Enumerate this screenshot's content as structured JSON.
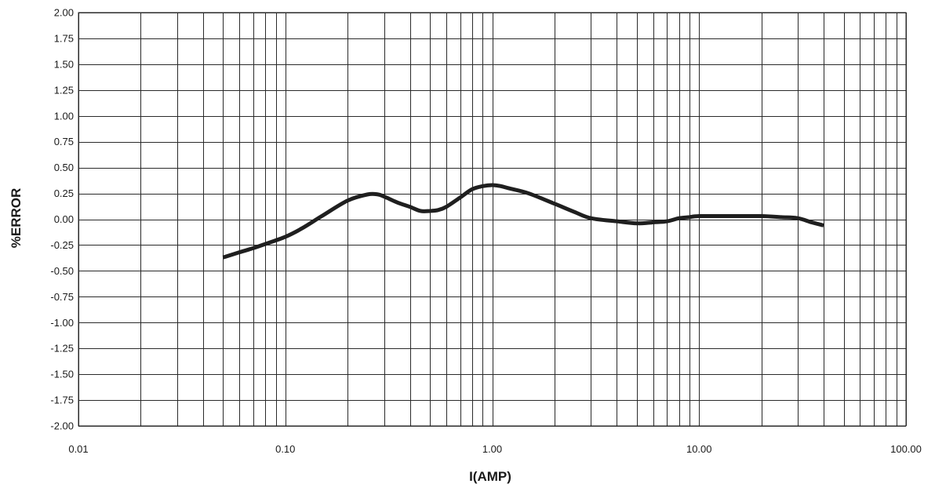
{
  "chart_data": {
    "type": "line",
    "title": "",
    "xlabel": "I(AMP)",
    "ylabel": "%ERROR",
    "x_scale": "log",
    "xlim": [
      0.01,
      100
    ],
    "ylim": [
      -2.0,
      2.0
    ],
    "x_ticks": [
      0.01,
      0.1,
      1,
      10,
      100
    ],
    "x_tick_labels": [
      "0.01",
      "0.10",
      "1.00",
      "10.00",
      "100.00"
    ],
    "y_ticks": [
      2.0,
      1.75,
      1.5,
      1.25,
      1.0,
      0.75,
      0.5,
      0.25,
      0.0,
      -0.25,
      -0.5,
      -0.75,
      -1.0,
      -1.25,
      -1.5,
      -1.75,
      -2.0
    ],
    "y_tick_labels": [
      "2.00",
      "1.75",
      "1.50",
      "1.25",
      "1.00",
      "0.75",
      "0.50",
      "0.25",
      "0.00",
      "-0.25",
      "-0.50",
      "-0.75",
      "-1.00",
      "-1.25",
      "-1.50",
      "-1.75",
      "-2.00"
    ],
    "grid": true,
    "legend": "none",
    "colors": {
      "line": "#1f1f1f",
      "grid": "#2a2a2a",
      "background": "#ffffff"
    },
    "series": [
      {
        "points": [
          [
            0.05,
            -0.37
          ],
          [
            0.06,
            -0.32
          ],
          [
            0.07,
            -0.28
          ],
          [
            0.08,
            -0.24
          ],
          [
            0.1,
            -0.17
          ],
          [
            0.12,
            -0.09
          ],
          [
            0.15,
            0.03
          ],
          [
            0.2,
            0.18
          ],
          [
            0.25,
            0.24
          ],
          [
            0.28,
            0.24
          ],
          [
            0.3,
            0.22
          ],
          [
            0.35,
            0.16
          ],
          [
            0.4,
            0.12
          ],
          [
            0.45,
            0.08
          ],
          [
            0.5,
            0.08
          ],
          [
            0.55,
            0.09
          ],
          [
            0.6,
            0.12
          ],
          [
            0.7,
            0.21
          ],
          [
            0.8,
            0.29
          ],
          [
            0.9,
            0.32
          ],
          [
            1.0,
            0.33
          ],
          [
            1.1,
            0.32
          ],
          [
            1.2,
            0.3
          ],
          [
            1.5,
            0.25
          ],
          [
            2.0,
            0.15
          ],
          [
            2.5,
            0.07
          ],
          [
            3.0,
            0.01
          ],
          [
            4.0,
            -0.02
          ],
          [
            5.0,
            -0.04
          ],
          [
            6.0,
            -0.03
          ],
          [
            7.0,
            -0.02
          ],
          [
            8.0,
            0.01
          ],
          [
            9.0,
            0.02
          ],
          [
            10.0,
            0.03
          ],
          [
            15.0,
            0.03
          ],
          [
            20.0,
            0.03
          ],
          [
            25.0,
            0.02
          ],
          [
            30.0,
            0.01
          ],
          [
            35.0,
            -0.03
          ],
          [
            40.0,
            -0.06
          ]
        ]
      }
    ]
  }
}
